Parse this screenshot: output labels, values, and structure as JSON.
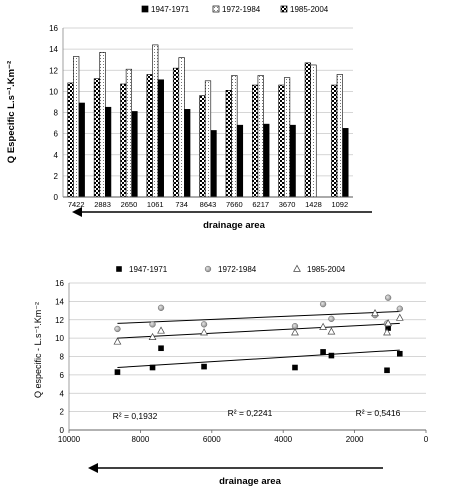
{
  "chart_data": [
    {
      "type": "bar",
      "ylabel": "Q Especific  L.s⁻¹.Km⁻²",
      "xlabel": "drainage area",
      "ylim": [
        0,
        16
      ],
      "yticks": [
        0,
        2,
        4,
        6,
        8,
        10,
        12,
        14,
        16
      ],
      "grid": true,
      "legend": "top",
      "categories": [
        "7422",
        "2883",
        "2650",
        "1061",
        "734",
        "8643",
        "7660",
        "6217",
        "3670",
        "1428",
        "1092"
      ],
      "series": [
        {
          "name": "1947-1971",
          "style": "solid-black",
          "values": [
            8.9,
            8.5,
            8.1,
            11.1,
            8.3,
            6.3,
            6.8,
            6.9,
            6.8,
            null,
            6.5
          ]
        },
        {
          "name": "1972-1984",
          "style": "white-dotted",
          "values": [
            13.3,
            13.7,
            12.1,
            14.4,
            13.2,
            11.0,
            11.5,
            11.5,
            11.3,
            12.5,
            11.6
          ]
        },
        {
          "name": "1985-2004",
          "style": "checkered",
          "values": [
            10.8,
            11.2,
            10.7,
            11.6,
            12.2,
            9.6,
            10.1,
            10.6,
            10.6,
            12.7,
            10.6
          ]
        }
      ]
    },
    {
      "type": "scatter",
      "ylabel": "Q especific  -  L.s⁻¹.Km⁻²",
      "xlabel": "drainage area",
      "xlim": [
        10000,
        0
      ],
      "ylim": [
        0,
        16
      ],
      "xticks": [
        10000,
        8000,
        6000,
        4000,
        2000,
        0
      ],
      "yticks": [
        0,
        2,
        4,
        6,
        8,
        10,
        12,
        14,
        16
      ],
      "grid": true,
      "legend": "top",
      "series": [
        {
          "name": "1947-1971",
          "marker": "square",
          "x": [
            8643,
            7660,
            7422,
            6217,
            3670,
            2883,
            2650,
            1092,
            1061,
            734
          ],
          "y": [
            6.3,
            6.8,
            8.9,
            6.9,
            6.8,
            8.5,
            8.1,
            6.5,
            11.1,
            8.3
          ],
          "trend": [
            6.8,
            8.7
          ]
        },
        {
          "name": "1972-1984",
          "marker": "circle",
          "x": [
            8643,
            7660,
            7422,
            6217,
            3670,
            2883,
            2650,
            1428,
            1092,
            1061,
            734
          ],
          "y": [
            11.0,
            11.5,
            13.3,
            11.5,
            11.3,
            13.7,
            12.1,
            12.5,
            11.6,
            14.4,
            13.2
          ],
          "trend": [
            11.6,
            12.9
          ]
        },
        {
          "name": "1985-2004",
          "marker": "triangle",
          "x": [
            8643,
            7660,
            7422,
            6217,
            3670,
            2883,
            2650,
            1428,
            1092,
            1061,
            734
          ],
          "y": [
            9.6,
            10.1,
            10.8,
            10.6,
            10.6,
            11.2,
            10.7,
            12.7,
            10.6,
            11.6,
            12.2
          ],
          "trend": [
            10.0,
            11.6
          ]
        }
      ],
      "annotations": [
        "R² = 0,1932",
        "R² = 0,2241",
        "R² = 0,5416"
      ]
    }
  ]
}
